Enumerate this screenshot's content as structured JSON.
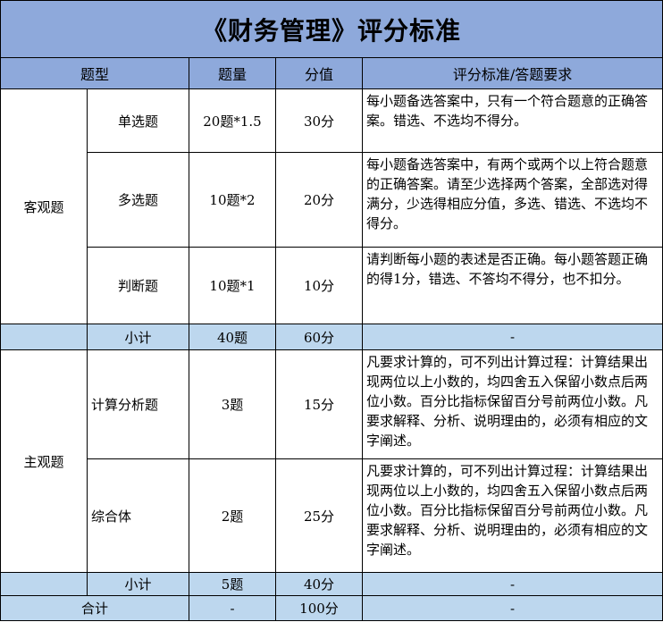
{
  "title": "《财务管理》评分标准",
  "header": {
    "type": "题型",
    "count": "题量",
    "score": "分值",
    "criteria": "评分标准/答题要求"
  },
  "objective": {
    "group": "客观题",
    "rows": [
      {
        "type": "单选题",
        "count": "20题*1.5",
        "score": "30分",
        "criteria": "每小题备选答案中，只有一个符合题意的正确答案。错选、不选均不得分。"
      },
      {
        "type": "多选题",
        "count": "10题*2",
        "score": "20分",
        "criteria": "每小题备选答案中，有两个或两个以上符合题意的正确答案。请至少选择两个答案，全部选对得满分，少选得相应分值，多选、错选、不选均不得分。"
      },
      {
        "type": "判断题",
        "count": "10题*1",
        "score": "10分",
        "criteria": "请判断每小题的表述是否正确。每小题答题正确的得1分，错选、不答均不得分，也不扣分。"
      }
    ],
    "subtotal": {
      "label": "小计",
      "count": "40题",
      "score": "60分",
      "criteria": "-"
    }
  },
  "subjective": {
    "group": "主观题",
    "rows": [
      {
        "type": "计算分析题",
        "count": "3题",
        "score": "15分",
        "criteria": "凡要求计算的，可不列出计算过程：计算结果出现两位以上小数的，均四舍五入保留小数点后两位小数。百分比指标保留百分号前两位小数。凡要求解释、分析、说明理由的，必须有相应的文字阐述。"
      },
      {
        "type": "综合体",
        "count": "2题",
        "score": "25分",
        "criteria": "凡要求计算的，可不列出计算过程：计算结果出现两位以上小数的，均四舍五入保留小数点后两位小数。百分比指标保留百分号前两位小数。凡要求解释、分析、说明理由的，必须有相应的文字阐述。"
      }
    ],
    "subtotal": {
      "label": "小计",
      "count": "5题",
      "score": "40分",
      "criteria": "-"
    }
  },
  "total": {
    "label": "合计",
    "count": "-",
    "score": "100分",
    "criteria": "-"
  },
  "colors": {
    "header_bg": "#8EA9DB",
    "subtotal_bg": "#BDD7EE"
  }
}
